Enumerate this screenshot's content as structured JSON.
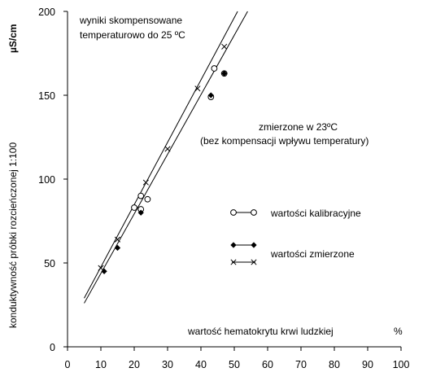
{
  "chart_data": {
    "type": "scatter",
    "ylabel": "konduktywność próbki rozcieńczonej 1:100",
    "yunit": "µS/cm",
    "xlabel": "wartość hematokrytu krwi ludzkiej",
    "xunit": "%",
    "xlim": [
      0,
      100
    ],
    "ylim": [
      0,
      200
    ],
    "xticks": [
      "0",
      "10",
      "20",
      "30",
      "40",
      "50",
      "60",
      "70",
      "80",
      "90",
      "100"
    ],
    "yticks": [
      "0",
      "50",
      "100",
      "150",
      "200"
    ],
    "annotations": {
      "compensated": [
        "wyniki skompensowane",
        "temperaturowo do 25 ºC"
      ],
      "measured": [
        "zmierzone w 23ºC",
        "(bez kompensacji wpływu temperatury)"
      ]
    },
    "legend": {
      "calibration": "wartości kalibracyjne",
      "measured_points": "wartości zmierzone"
    },
    "lines": [
      {
        "points": [
          [
            5,
            29
          ],
          [
            51,
            200
          ]
        ]
      },
      {
        "points": [
          [
            5,
            26
          ],
          [
            54,
            200
          ]
        ]
      }
    ],
    "series": [
      {
        "marker": "circle",
        "points": [
          [
            20,
            83
          ],
          [
            22,
            82
          ],
          [
            22,
            90
          ],
          [
            24,
            88
          ],
          [
            43,
            149
          ],
          [
            44,
            166
          ],
          [
            47,
            163
          ]
        ]
      },
      {
        "marker": "diamond",
        "points": [
          [
            11,
            45
          ],
          [
            15,
            59
          ],
          [
            22,
            80
          ],
          [
            43,
            150
          ],
          [
            47,
            163
          ]
        ]
      },
      {
        "marker": "x",
        "points": [
          [
            10,
            47
          ],
          [
            15,
            64
          ],
          [
            23.5,
            98
          ],
          [
            30,
            118
          ],
          [
            39,
            154
          ],
          [
            47,
            179
          ]
        ]
      }
    ]
  }
}
